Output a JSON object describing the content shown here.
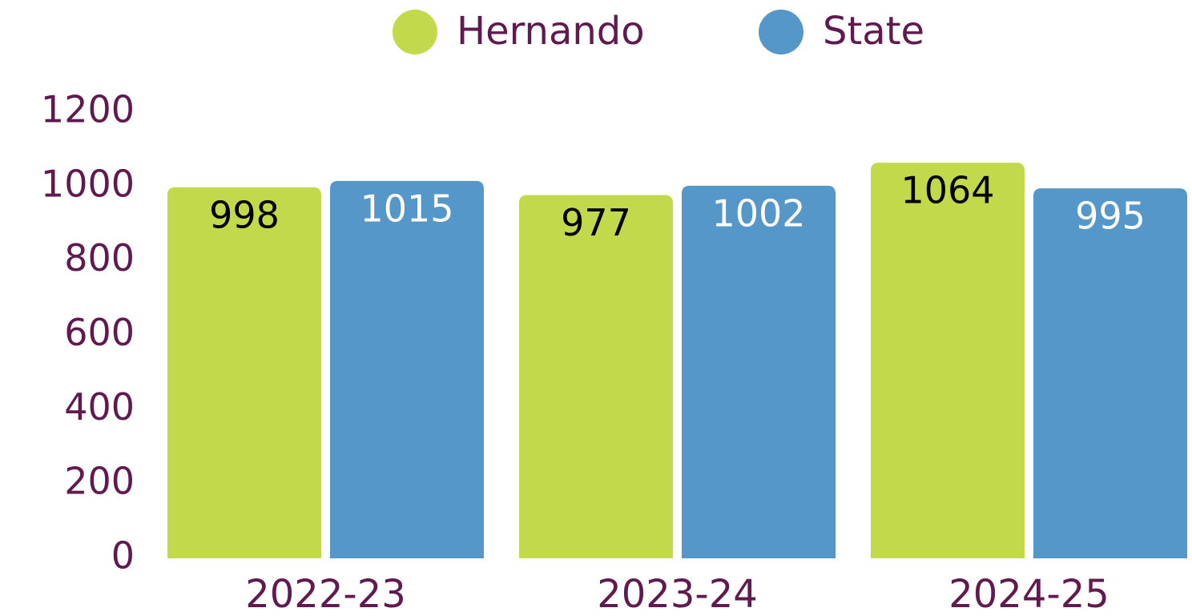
{
  "chart_data": {
    "type": "bar",
    "categories": [
      "2022-23",
      "2023-24",
      "2024-25"
    ],
    "series": [
      {
        "name": "Hernando",
        "color": "#c2d94b",
        "label_color": "#000000",
        "values": [
          998,
          977,
          1064
        ]
      },
      {
        "name": "State",
        "color": "#5497c8",
        "label_color": "#ffffff",
        "values": [
          1015,
          1002,
          995
        ]
      }
    ],
    "ylim": [
      0,
      1200
    ],
    "yticks": [
      0,
      200,
      400,
      600,
      800,
      1000,
      1200
    ],
    "grid": false,
    "legend": "top"
  }
}
